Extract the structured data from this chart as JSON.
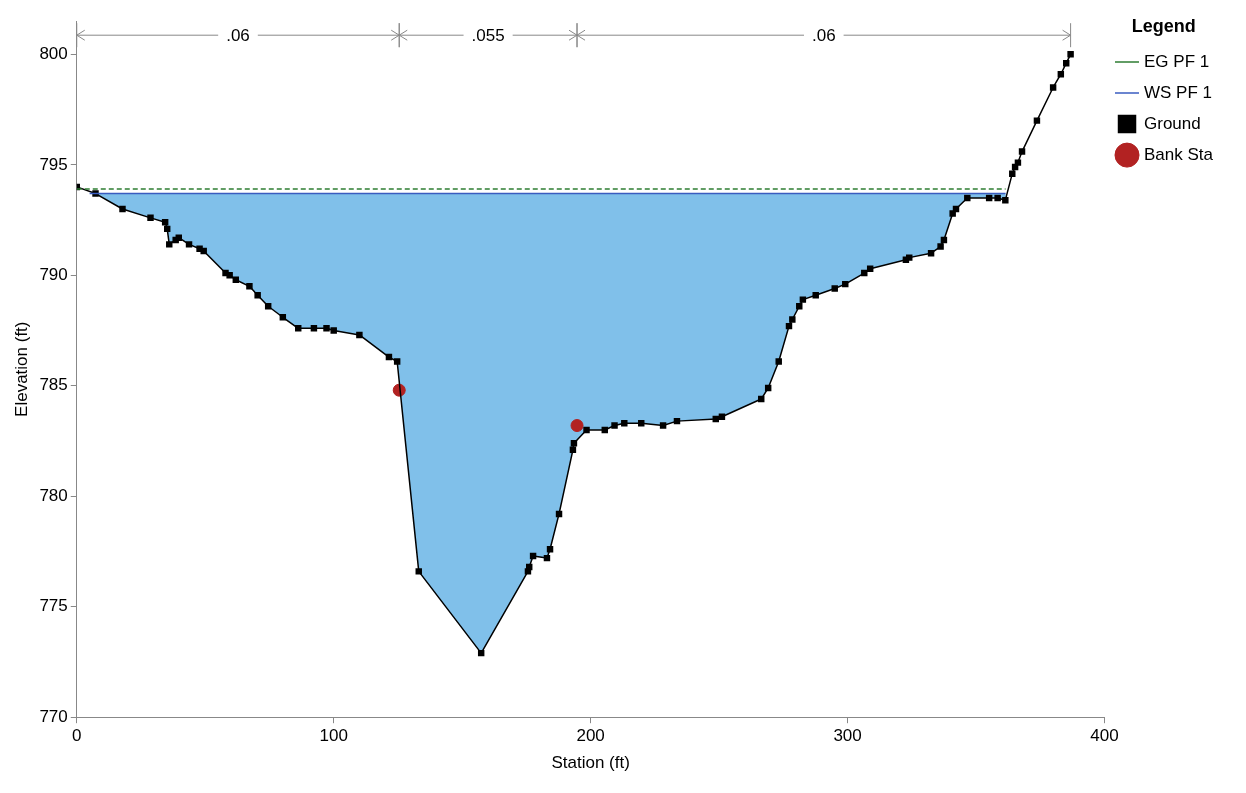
{
  "chart_data": {
    "type": "line",
    "xlabel": "Station (ft)",
    "ylabel": "Elevation (ft)",
    "legend_title": "Legend",
    "legend": "right",
    "grid": false,
    "xlim": [
      0,
      400
    ],
    "xticks": [
      0,
      100,
      200,
      300,
      400
    ],
    "ylim": [
      770,
      801.5
    ],
    "yticks": [
      770,
      775,
      780,
      785,
      790,
      795,
      800
    ],
    "annotations": [
      ".06",
      ".055",
      ".06"
    ],
    "series": [
      {
        "name": "EG PF 1",
        "type": "line",
        "color": "#2e7d32",
        "line_style": "dashed",
        "marker": "none",
        "x": [
          0,
          361.5
        ],
        "values": [
          793.9,
          793.9
        ]
      },
      {
        "name": "WS PF 1",
        "type": "area",
        "color": "#80c0ea",
        "marker": "none",
        "x": [
          5,
          361.5
        ],
        "values": [
          793.7,
          793.7
        ]
      },
      {
        "name": "Ground",
        "color": "#000000",
        "marker": "square",
        "x": [
          0,
          7.3,
          17.8,
          28.7,
          34.4,
          35.2,
          36,
          38.5,
          39.7,
          43.7,
          47.8,
          49.4,
          57.9,
          59.5,
          61.9,
          67.2,
          70.4,
          74.5,
          80.2,
          86.2,
          92.3,
          97.2,
          100,
          110,
          121.5,
          124.7,
          133.1,
          157.4,
          175.6,
          176.1,
          177.6,
          183,
          184.2,
          187.7,
          193.1,
          193.5,
          198.4,
          205.5,
          209.3,
          213.1,
          219.7,
          228.2,
          233.6,
          248.7,
          251.1,
          266.4,
          269.1,
          273.2,
          277.2,
          278.5,
          281.2,
          282.6,
          287.6,
          295,
          299.1,
          306.5,
          308.8,
          322.7,
          324,
          332.5,
          336.2,
          337.5,
          340.9,
          342.2,
          346.6,
          355.1,
          358.4,
          361.4,
          364.1,
          365.2,
          366.3,
          367.9,
          373.7,
          380,
          383,
          385.1,
          386.8
        ],
        "values": [
          794,
          793.7,
          793,
          792.6,
          792.4,
          792.1,
          791.4,
          791.6,
          791.7,
          791.4,
          791.2,
          791.1,
          790.1,
          790,
          789.8,
          789.5,
          789.1,
          788.6,
          788.1,
          787.6,
          787.6,
          787.6,
          787.5,
          787.3,
          786.3,
          786.1,
          776.6,
          772.9,
          776.6,
          776.8,
          777.3,
          777.2,
          777.6,
          779.2,
          782.1,
          782.4,
          783,
          783,
          783.2,
          783.3,
          783.3,
          783.2,
          783.4,
          783.5,
          783.6,
          784.4,
          784.9,
          786.1,
          787.7,
          788,
          788.6,
          788.9,
          789.1,
          789.4,
          789.6,
          790.1,
          790.3,
          790.7,
          790.8,
          791,
          791.3,
          791.6,
          792.8,
          793,
          793.5,
          793.5,
          793.5,
          793.4,
          794.6,
          794.9,
          795.1,
          795.6,
          797,
          798.5,
          799.1,
          799.6,
          800
        ]
      },
      {
        "name": "Bank Sta",
        "type": "scatter",
        "color": "#b22222",
        "marker": "circle",
        "x": [
          125.5,
          194.7
        ],
        "values": [
          784.8,
          783.2
        ]
      }
    ]
  }
}
